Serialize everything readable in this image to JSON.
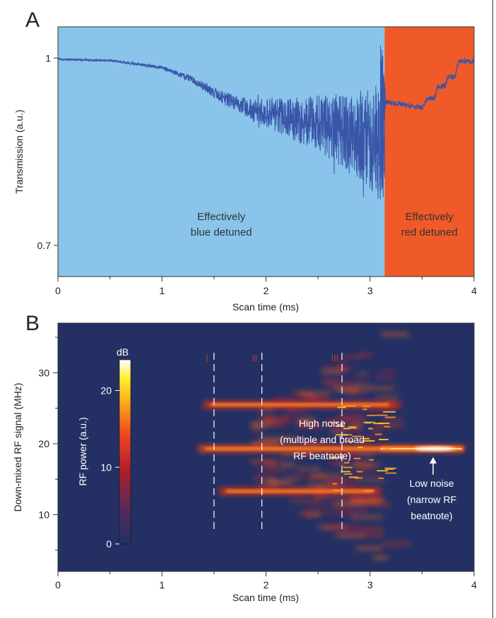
{
  "chart_data": [
    {
      "panel": "A",
      "type": "line",
      "xlabel": "Scan time (ms)",
      "ylabel": "Transmission (a.u.)",
      "xlim": [
        0,
        4
      ],
      "xticks": [
        "0",
        "1",
        "2",
        "3",
        "4"
      ],
      "yticks": [
        "0.7",
        "1"
      ],
      "ylim": [
        0.65,
        1.05
      ],
      "regions": [
        {
          "label_line1": "Effectively",
          "label_line2": "blue detuned",
          "x_range": [
            0,
            3.14
          ],
          "color": "#8ac4ea"
        },
        {
          "label_line1": "Effectively",
          "label_line2": "red detuned",
          "x_range": [
            3.14,
            4.0
          ],
          "color": "#f05a28"
        }
      ],
      "series": [
        {
          "name": "Transmission",
          "color": "#3a55a8",
          "envelope_x": [
            0,
            0.5,
            1.0,
            1.3,
            1.6,
            1.9,
            2.2,
            2.5,
            2.8,
            3.0,
            3.1,
            3.14
          ],
          "envelope_mean": [
            0.998,
            0.996,
            0.985,
            0.965,
            0.935,
            0.915,
            0.905,
            0.895,
            0.88,
            0.87,
            0.86,
            0.85
          ],
          "envelope_amp": [
            0.002,
            0.002,
            0.003,
            0.006,
            0.012,
            0.02,
            0.035,
            0.05,
            0.07,
            0.09,
            0.1,
            0.11
          ],
          "red_x": [
            3.14,
            3.5,
            3.55,
            3.62,
            3.65,
            3.72,
            3.75,
            3.82,
            3.85,
            4.0
          ],
          "red_y": [
            0.93,
            0.92,
            0.935,
            0.935,
            0.955,
            0.955,
            0.97,
            0.97,
            0.995,
            0.995
          ]
        }
      ]
    },
    {
      "panel": "B",
      "type": "heatmap",
      "xlabel": "Scan time (ms)",
      "ylabel": "Down-mixed RF signal (MHz)",
      "xlim": [
        0,
        4
      ],
      "ylim": [
        2,
        37
      ],
      "xticks": [
        "0",
        "1",
        "2",
        "3",
        "4"
      ],
      "yticks": [
        "10",
        "20",
        "30"
      ],
      "colorbar": {
        "title": "RF power (a.u.)",
        "unit": "dB",
        "ticks": [
          "0",
          "10",
          "20"
        ],
        "range": [
          0,
          24
        ]
      },
      "markers": [
        {
          "label": "I",
          "x": 1.5
        },
        {
          "label": "II",
          "x": 1.96
        },
        {
          "label": "III",
          "x": 2.73
        }
      ],
      "annotations": [
        {
          "line1": "High noise",
          "line2": "(multiple and broad",
          "line3": "RF beatnote)"
        },
        {
          "line1": "Low noise",
          "line2": "(narrow RF",
          "line3": "beatnote)"
        }
      ],
      "bands": [
        {
          "center_mhz": 19.3,
          "x_start": 1.35,
          "x_end": 3.9
        },
        {
          "center_mhz": 25.5,
          "x_start": 1.4,
          "x_end": 3.25
        },
        {
          "center_mhz": 13.3,
          "x_start": 1.55,
          "x_end": 3.1
        }
      ]
    }
  ],
  "panel_letters": {
    "a": "A",
    "b": "B"
  }
}
